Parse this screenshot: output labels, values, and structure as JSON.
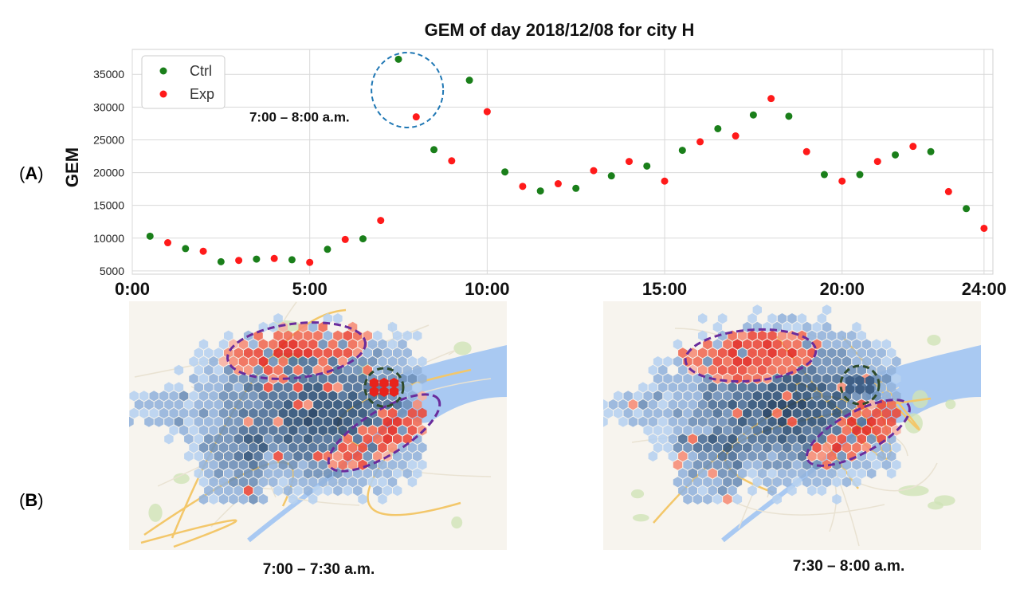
{
  "panel_a_label": "A",
  "panel_b_label": "B",
  "chart_data": {
    "type": "scatter",
    "title": "GEM of day 2018/12/08 for city H",
    "ylabel": "GEM",
    "xlabel": "",
    "xlim": [
      0,
      24.25
    ],
    "ylim": [
      4500,
      38800
    ],
    "x_tick_values": [
      0,
      5,
      10,
      15,
      20,
      24
    ],
    "x_tick_labels": [
      "0:00",
      "5:00",
      "10:00",
      "15:00",
      "20:00",
      "24:00"
    ],
    "y_tick_values": [
      5000,
      10000,
      15000,
      20000,
      25000,
      30000,
      35000
    ],
    "y_tick_labels": [
      "5000",
      "10000",
      "15000",
      "20000",
      "25000",
      "30000",
      "35000"
    ],
    "grid": true,
    "legend_position": "top-left",
    "series": [
      {
        "name": "Ctrl",
        "color": "#1a7f1a",
        "x": [
          0.5,
          1.5,
          2.5,
          3.5,
          4.5,
          5.5,
          6.5,
          7.5,
          8.5,
          9.5,
          10.5,
          11.5,
          12.5,
          13.5,
          14.5,
          15.5,
          16.5,
          17.5,
          18.5,
          19.5,
          20.5,
          21.5,
          22.5,
          23.5
        ],
        "y": [
          10300,
          8400,
          6400,
          6800,
          6700,
          8300,
          9900,
          37300,
          23500,
          34100,
          20100,
          17200,
          17600,
          19500,
          21000,
          23400,
          26700,
          28800,
          28600,
          19700,
          19700,
          22700,
          23200,
          14500
        ]
      },
      {
        "name": "Exp",
        "color": "#ff1a1a",
        "x": [
          1,
          2,
          3,
          4,
          5,
          6,
          7,
          8,
          9,
          10,
          11,
          12,
          13,
          14,
          15,
          16,
          17,
          18,
          19,
          20,
          21,
          22,
          23,
          24
        ],
        "y": [
          9300,
          8000,
          6600,
          6900,
          6300,
          9800,
          12700,
          28500,
          21800,
          29300,
          17900,
          18300,
          20300,
          21700,
          18700,
          24700,
          25600,
          31300,
          23200,
          18700,
          21700,
          24000,
          17100,
          11500
        ]
      }
    ],
    "annotations": [
      {
        "text": "7:00 – 8:00 a.m.",
        "x": 3.3,
        "y": 28500,
        "highlight_x": 7.75,
        "highlight_y": 32600
      }
    ]
  },
  "maps": {
    "left_caption": "7:00 – 7:30 a.m.",
    "right_caption": "7:30 – 8:00 a.m."
  }
}
